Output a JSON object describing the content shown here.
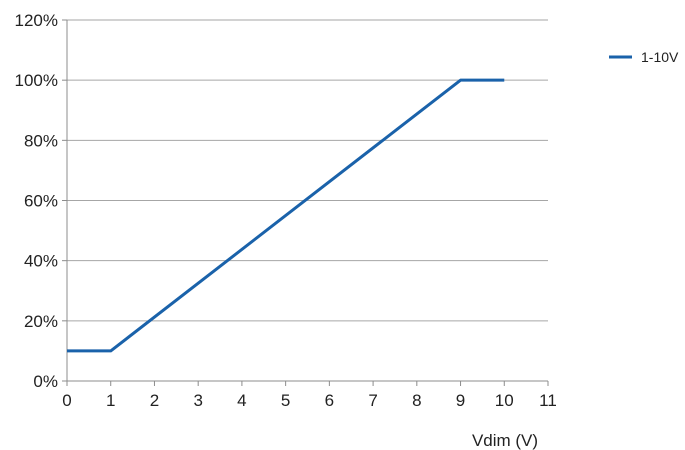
{
  "chart_data": {
    "type": "line",
    "title": "",
    "xlabel": "Vdim (V)",
    "ylabel": "",
    "xlim": [
      0,
      11
    ],
    "ylim": [
      0,
      120
    ],
    "x_ticks": [
      0,
      1,
      2,
      3,
      4,
      5,
      6,
      7,
      8,
      9,
      10,
      11
    ],
    "x_tick_labels": [
      "0",
      "1",
      "2",
      "3",
      "4",
      "5",
      "6",
      "7",
      "8",
      "9",
      "10",
      "11"
    ],
    "y_ticks": [
      0,
      20,
      40,
      60,
      80,
      100,
      120
    ],
    "y_tick_labels": [
      "0%",
      "20%",
      "40%",
      "60%",
      "80%",
      "100%",
      "120%"
    ],
    "grid": "horizontal",
    "legend_position": "top-right",
    "series": [
      {
        "name": "1-10V",
        "color": "#1a62aa",
        "x": [
          0,
          1,
          9,
          10
        ],
        "y": [
          10,
          10,
          100,
          100
        ]
      }
    ]
  }
}
